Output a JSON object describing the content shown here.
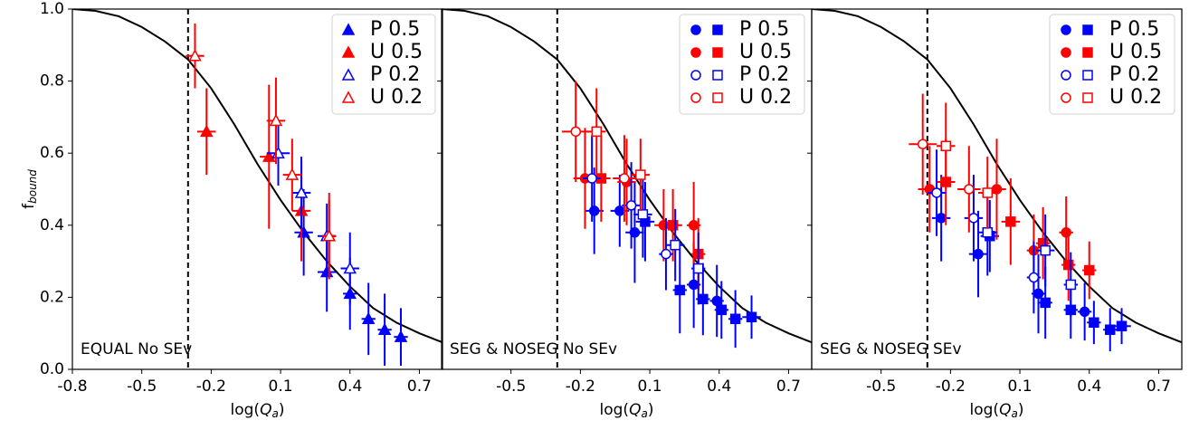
{
  "chart_data": [
    {
      "type": "scatter",
      "annotation": "EQUAL No SEv",
      "xlabel": [
        "log(",
        "Q",
        "a",
        ")"
      ],
      "ylabel": [
        "f",
        "bound"
      ],
      "xlim": [
        -0.8,
        0.8
      ],
      "ylim": [
        0,
        1
      ],
      "xticks": [
        -0.8,
        -0.5,
        -0.2,
        0.1,
        0.4,
        0.7
      ],
      "yticks": [
        {
          "value": 0,
          "label": "0.0"
        },
        0.2,
        0.4,
        0.6,
        0.8,
        {
          "value": 1,
          "label": "1.0"
        }
      ],
      "vline": -0.3,
      "legend": "upper right",
      "curve": {
        "x": [
          -0.8,
          -0.7,
          -0.6,
          -0.5,
          -0.4,
          -0.3,
          -0.2,
          -0.1,
          0,
          0.1,
          0.2,
          0.3,
          0.4,
          0.5,
          0.6,
          0.7,
          0.8
        ],
        "y": [
          1.0,
          0.995,
          0.98,
          0.95,
          0.91,
          0.86,
          0.78,
          0.68,
          0.57,
          0.47,
          0.38,
          0.3,
          0.23,
          0.17,
          0.13,
          0.1,
          0.075
        ]
      },
      "series": [
        {
          "name": "P 0.5",
          "color": "#0000ff",
          "filled": true,
          "markers": [
            "triangle",
            "triangle",
            "triangle",
            "triangle",
            "triangle",
            "triangle"
          ],
          "x": [
            0.2,
            0.3,
            0.4,
            0.48,
            0.55,
            0.62
          ],
          "y": [
            0.38,
            0.27,
            0.21,
            0.14,
            0.11,
            0.09
          ],
          "xerr": [
            0.04,
            0.04,
            0.03,
            0.03,
            0.03,
            0.03
          ],
          "yerr": [
            0.12,
            0.11,
            0.1,
            0.1,
            0.1,
            0.08
          ]
        },
        {
          "name": "U 0.5",
          "color": "#ff0000",
          "filled": true,
          "markers": [
            "triangle",
            "triangle",
            "triangle",
            "triangle"
          ],
          "x": [
            -0.22,
            0.05,
            0.19,
            0.31
          ],
          "y": [
            0.66,
            0.59,
            0.44,
            0.37
          ],
          "xerr": [
            0.04,
            0.04,
            0.04,
            0.03
          ],
          "yerr": [
            0.12,
            0.2,
            0.14,
            0.1
          ]
        },
        {
          "name": "P 0.2",
          "color": "#0000ff",
          "filled": false,
          "markers": [
            "triangle",
            "triangle",
            "triangle",
            "triangle"
          ],
          "x": [
            0.09,
            0.19,
            0.3,
            0.4
          ],
          "y": [
            0.6,
            0.49,
            0.37,
            0.28
          ],
          "xerr": [
            0.05,
            0.04,
            0.04,
            0.04
          ],
          "yerr": [
            0.09,
            0.1,
            0.09,
            0.1
          ]
        },
        {
          "name": "U 0.2",
          "color": "#ff0000",
          "filled": false,
          "markers": [
            "triangle",
            "triangle",
            "triangle",
            "triangle"
          ],
          "x": [
            -0.27,
            0.08,
            0.15,
            0.31
          ],
          "y": [
            0.87,
            0.69,
            0.54,
            0.37
          ],
          "xerr": [
            0.04,
            0.04,
            0.04,
            0.03
          ],
          "yerr": [
            0.09,
            0.12,
            0.1,
            0.12
          ]
        }
      ]
    },
    {
      "type": "scatter",
      "annotation": "SEG & NOSEG No SEv",
      "xlabel": [
        "log(",
        "Q",
        "a",
        ")"
      ],
      "xlim": [
        -0.8,
        0.8
      ],
      "ylim": [
        0,
        1
      ],
      "xticks": [
        -0.5,
        -0.2,
        0.1,
        0.4,
        0.7
      ],
      "yticks": [
        0,
        0.2,
        0.4,
        0.6,
        0.8,
        1
      ],
      "vline": -0.3,
      "legend": "upper right",
      "curve": {
        "x": [
          -0.8,
          -0.7,
          -0.6,
          -0.5,
          -0.4,
          -0.3,
          -0.2,
          -0.1,
          0,
          0.1,
          0.2,
          0.3,
          0.4,
          0.5,
          0.6,
          0.7,
          0.8
        ],
        "y": [
          1.0,
          0.995,
          0.98,
          0.95,
          0.91,
          0.86,
          0.78,
          0.68,
          0.57,
          0.47,
          0.38,
          0.3,
          0.23,
          0.17,
          0.13,
          0.1,
          0.075
        ]
      },
      "series": [
        {
          "name": "P 0.5",
          "color": "#0000ff",
          "filled": true,
          "markers": [
            "circle",
            "circle",
            "circle",
            "circle",
            "circle",
            "square",
            "square",
            "square",
            "square",
            "square",
            "square"
          ],
          "x": [
            -0.14,
            0.035,
            0.29,
            0.39,
            -0.03,
            0.08,
            0.23,
            0.33,
            0.41,
            0.47,
            0.54
          ],
          "y": [
            0.44,
            0.38,
            0.235,
            0.19,
            0.44,
            0.41,
            0.22,
            0.195,
            0.165,
            0.14,
            0.145
          ],
          "xerr": [
            0.04,
            0.04,
            0.03,
            0.03,
            0.04,
            0.04,
            0.03,
            0.03,
            0.03,
            0.03,
            0.04
          ],
          "yerr": [
            0.12,
            0.14,
            0.12,
            0.1,
            0.1,
            0.11,
            0.12,
            0.1,
            0.08,
            0.08,
            0.06
          ]
        },
        {
          "name": "U 0.5",
          "color": "#ff0000",
          "filled": true,
          "markers": [
            "circle",
            "circle",
            "circle",
            "circle",
            "square",
            "square",
            "square"
          ],
          "x": [
            -0.18,
            0.0,
            0.16,
            0.29,
            -0.11,
            0.2,
            0.31
          ],
          "y": [
            0.53,
            0.52,
            0.4,
            0.4,
            0.53,
            0.4,
            0.32
          ],
          "xerr": [
            0.05,
            0.04,
            0.04,
            0.03,
            0.04,
            0.04,
            0.03
          ],
          "yerr": [
            0.14,
            0.12,
            0.1,
            0.12,
            0.12,
            0.1,
            0.1
          ]
        },
        {
          "name": "P 0.2",
          "color": "#0000ff",
          "filled": false,
          "markers": [
            "circle",
            "circle",
            "circle",
            "square",
            "square",
            "square"
          ],
          "x": [
            -0.15,
            0.02,
            0.17,
            0.07,
            0.21,
            0.31
          ],
          "y": [
            0.53,
            0.455,
            0.32,
            0.43,
            0.345,
            0.28
          ],
          "xerr": [
            0.04,
            0.04,
            0.03,
            0.04,
            0.04,
            0.03
          ],
          "yerr": [
            0.12,
            0.12,
            0.1,
            0.12,
            0.1,
            0.1
          ]
        },
        {
          "name": "U 0.2",
          "color": "#ff0000",
          "filled": false,
          "markers": [
            "circle",
            "circle",
            "square",
            "square"
          ],
          "x": [
            -0.22,
            -0.01,
            -0.13,
            0.06
          ],
          "y": [
            0.66,
            0.53,
            0.66,
            0.54
          ],
          "xerr": [
            0.06,
            0.05,
            0.04,
            0.04
          ],
          "yerr": [
            0.14,
            0.12,
            0.12,
            0.1
          ]
        }
      ]
    },
    {
      "type": "scatter",
      "annotation": "SEG & NOSEG SEv",
      "xlabel": [
        "log(",
        "Q",
        "a",
        ")"
      ],
      "xlim": [
        -0.8,
        0.8
      ],
      "ylim": [
        0,
        1
      ],
      "xticks": [
        -0.5,
        -0.2,
        0.1,
        0.4,
        0.7
      ],
      "yticks": [
        0,
        0.2,
        0.4,
        0.6,
        0.8,
        1
      ],
      "vline": -0.3,
      "legend": "upper right",
      "curve": {
        "x": [
          -0.8,
          -0.7,
          -0.6,
          -0.5,
          -0.4,
          -0.3,
          -0.2,
          -0.1,
          0,
          0.1,
          0.2,
          0.3,
          0.4,
          0.5,
          0.6,
          0.7,
          0.8
        ],
        "y": [
          1.0,
          0.995,
          0.98,
          0.95,
          0.91,
          0.86,
          0.78,
          0.68,
          0.57,
          0.47,
          0.38,
          0.3,
          0.23,
          0.17,
          0.13,
          0.1,
          0.075
        ]
      },
      "series": [
        {
          "name": "P 0.5",
          "color": "#0000ff",
          "filled": true,
          "markers": [
            "circle",
            "circle",
            "circle",
            "circle",
            "square",
            "square",
            "square",
            "square",
            "square",
            "square"
          ],
          "x": [
            -0.24,
            -0.08,
            0.18,
            0.38,
            -0.03,
            0.21,
            0.32,
            0.42,
            0.49,
            0.54
          ],
          "y": [
            0.42,
            0.32,
            0.21,
            0.16,
            0.37,
            0.185,
            0.165,
            0.13,
            0.11,
            0.12
          ],
          "xerr": [
            0.04,
            0.04,
            0.03,
            0.03,
            0.04,
            0.03,
            0.03,
            0.03,
            0.03,
            0.04
          ],
          "yerr": [
            0.12,
            0.12,
            0.11,
            0.08,
            0.1,
            0.1,
            0.08,
            0.06,
            0.06,
            0.05
          ]
        },
        {
          "name": "U 0.5",
          "color": "#ff0000",
          "filled": true,
          "markers": [
            "circle",
            "circle",
            "circle",
            "circle",
            "square",
            "square",
            "square",
            "square",
            "square"
          ],
          "x": [
            -0.29,
            0.0,
            0.16,
            0.3,
            -0.22,
            0.06,
            0.2,
            0.31,
            0.4
          ],
          "y": [
            0.5,
            0.5,
            0.33,
            0.38,
            0.52,
            0.41,
            0.35,
            0.29,
            0.275
          ],
          "xerr": [
            0.05,
            0.04,
            0.03,
            0.03,
            0.04,
            0.04,
            0.03,
            0.03,
            0.03
          ],
          "yerr": [
            0.12,
            0.14,
            0.1,
            0.1,
            0.12,
            0.12,
            0.1,
            0.1,
            0.08
          ]
        },
        {
          "name": "P 0.2",
          "color": "#0000ff",
          "filled": false,
          "markers": [
            "circle",
            "circle",
            "circle",
            "square",
            "square",
            "square"
          ],
          "x": [
            -0.26,
            -0.1,
            0.16,
            -0.04,
            0.21,
            0.32
          ],
          "y": [
            0.49,
            0.42,
            0.255,
            0.38,
            0.33,
            0.235
          ],
          "xerr": [
            0.04,
            0.04,
            0.03,
            0.04,
            0.04,
            0.03
          ],
          "yerr": [
            0.12,
            0.12,
            0.1,
            0.12,
            0.1,
            0.09
          ]
        },
        {
          "name": "U 0.2",
          "color": "#ff0000",
          "filled": false,
          "markers": [
            "circle",
            "circle",
            "square",
            "square"
          ],
          "x": [
            -0.32,
            -0.12,
            -0.22,
            -0.04
          ],
          "y": [
            0.625,
            0.5,
            0.62,
            0.49
          ],
          "xerr": [
            0.06,
            0.05,
            0.04,
            0.04
          ],
          "yerr": [
            0.14,
            0.12,
            0.12,
            0.1
          ]
        }
      ]
    }
  ]
}
